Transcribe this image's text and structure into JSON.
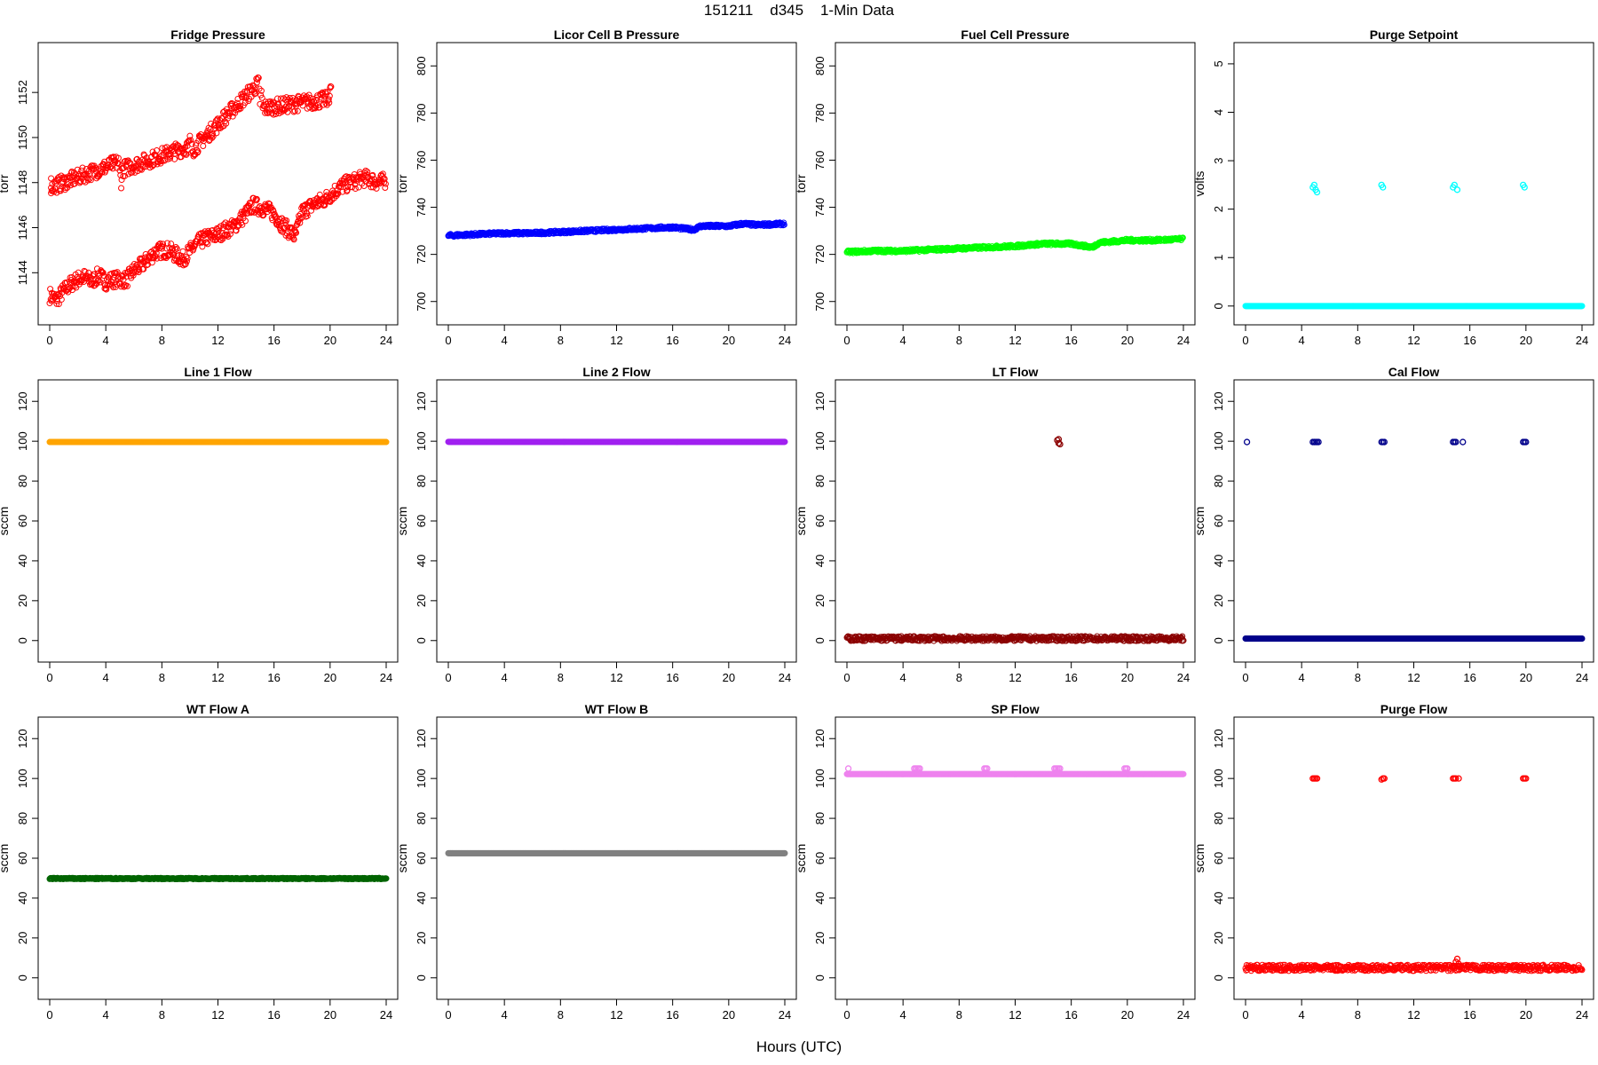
{
  "page": {
    "title": "151211    d345    1-Min Data",
    "xlabel": "Hours (UTC)"
  },
  "chart_data": [
    {
      "type": "scatter",
      "title": "Fridge Pressure",
      "ylabel": "torr",
      "color": "#ff0000",
      "xlim": [
        0,
        24
      ],
      "ylim": [
        1142.2,
        1153.7
      ],
      "xticks": [
        0,
        4,
        8,
        12,
        16,
        20,
        24
      ],
      "yticks": [
        1144,
        1146,
        1148,
        1150,
        1152
      ],
      "series": [
        {
          "x": [
            0,
            0.5,
            1,
            1.5,
            2,
            2.5,
            3,
            3.5,
            4,
            4.5,
            5.5,
            6,
            6.5,
            7,
            7.5,
            8,
            8.5,
            9,
            9.5,
            10.5,
            11,
            11.5,
            12,
            12.5,
            13,
            13.5,
            14,
            14.5,
            15.5,
            16,
            16.5,
            17,
            17.5,
            18,
            18.5,
            19,
            19.5,
            20.5,
            21,
            21.5,
            22,
            22.5,
            23,
            23.5,
            24
          ],
          "y": [
            1143.0,
            1142.8,
            1143.2,
            1143.5,
            1143.7,
            1143.8,
            1143.6,
            1143.9,
            1143.6,
            1143.7,
            1143.7,
            1144.1,
            1144.3,
            1144.6,
            1144.9,
            1145.0,
            1145.0,
            1144.8,
            1144.6,
            1145.3,
            1145.5,
            1145.6,
            1145.7,
            1145.9,
            1146.0,
            1146.3,
            1146.6,
            1147.0,
            1146.8,
            1146.6,
            1146.2,
            1145.9,
            1145.6,
            1146.7,
            1146.9,
            1147.1,
            1147.2,
            1147.7,
            1147.9,
            1148.0,
            1148.1,
            1148.2,
            1148.1,
            1148.0,
            1148.1
          ],
          "jitter": 0.35
        },
        {
          "x": [
            0.1,
            0.1,
            4.9,
            5.0,
            5.1,
            5.2,
            9.9,
            10.0,
            10.1,
            14.9,
            15.0,
            15.1,
            15.2,
            19.9,
            20.0,
            20.1
          ],
          "y": [
            1148.1,
            1147.8,
            1148.9,
            1148.4,
            1148.1,
            1148.6,
            1149.6,
            1149.9,
            1149.4,
            1152.4,
            1151.6,
            1151.9,
            1151.3,
            1151.7,
            1152.2,
            1151.9
          ],
          "jitter": 0.35
        }
      ]
    },
    {
      "type": "scatter",
      "title": "Licor Cell B Pressure",
      "ylabel": "torr",
      "color": "#0000ff",
      "xlim": [
        0,
        24
      ],
      "ylim": [
        695,
        805
      ],
      "xticks": [
        0,
        4,
        8,
        12,
        16,
        20,
        24
      ],
      "yticks": [
        700,
        720,
        740,
        760,
        780,
        800
      ],
      "series": [
        {
          "x": [
            0,
            2,
            4,
            6,
            8,
            10,
            12,
            14,
            16,
            17.5,
            18,
            20,
            21,
            22,
            24
          ],
          "y": [
            728,
            728.5,
            729,
            729,
            729.5,
            730,
            730.5,
            731,
            731.5,
            730.5,
            732,
            732,
            733,
            732.5,
            733
          ],
          "jitter": 0.6
        }
      ]
    },
    {
      "type": "scatter",
      "title": "Fuel Cell Pressure",
      "ylabel": "torr",
      "color": "#00ff00",
      "xlim": [
        0,
        24
      ],
      "ylim": [
        695,
        805
      ],
      "xticks": [
        0,
        4,
        8,
        12,
        16,
        20,
        24
      ],
      "yticks": [
        700,
        720,
        740,
        760,
        780,
        800
      ],
      "series": [
        {
          "x": [
            0,
            2,
            4,
            6,
            8,
            10,
            12,
            14,
            16,
            17.5,
            18,
            20,
            22,
            24
          ],
          "y": [
            721,
            721.5,
            721.5,
            722,
            722.5,
            723,
            723.5,
            724.5,
            724.5,
            723,
            725,
            726,
            726,
            726.5
          ],
          "jitter": 0.6
        }
      ]
    },
    {
      "type": "scatter",
      "title": "Purge Setpoint",
      "ylabel": "volts",
      "color": "#00ffff",
      "xlim": [
        0,
        24
      ],
      "ylim": [
        -0.15,
        5.2
      ],
      "xticks": [
        0,
        4,
        8,
        12,
        16,
        20,
        24
      ],
      "yticks": [
        0,
        1,
        2,
        3,
        4,
        5
      ],
      "series": [
        {
          "x": [
            0,
            24
          ],
          "y": [
            0,
            0
          ],
          "jitter": 0
        },
        {
          "x": [
            4.8,
            4.9,
            5.0,
            5.1,
            9.7,
            9.8,
            14.8,
            14.9,
            15.1,
            19.8,
            19.9
          ],
          "y": [
            2.45,
            2.5,
            2.4,
            2.35,
            2.5,
            2.45,
            2.45,
            2.5,
            2.4,
            2.5,
            2.45
          ],
          "jitter": 0
        }
      ]
    },
    {
      "type": "scatter",
      "title": "Line 1 Flow",
      "ylabel": "sccm",
      "color": "#ffa500",
      "xlim": [
        0,
        24
      ],
      "ylim": [
        -5,
        125
      ],
      "xticks": [
        0,
        4,
        8,
        12,
        16,
        20,
        24
      ],
      "yticks": [
        0,
        20,
        40,
        60,
        80,
        100,
        120
      ],
      "series": [
        {
          "x": [
            0,
            24
          ],
          "y": [
            99.6,
            99.6
          ],
          "jitter": 0
        }
      ]
    },
    {
      "type": "scatter",
      "title": "Line 2 Flow",
      "ylabel": "sccm",
      "color": "#a020f0",
      "xlim": [
        0,
        24
      ],
      "ylim": [
        -5,
        125
      ],
      "xticks": [
        0,
        4,
        8,
        12,
        16,
        20,
        24
      ],
      "yticks": [
        0,
        20,
        40,
        60,
        80,
        100,
        120
      ],
      "series": [
        {
          "x": [
            0,
            24
          ],
          "y": [
            99.7,
            99.7
          ],
          "jitter": 0
        }
      ]
    },
    {
      "type": "scatter",
      "title": "LT Flow",
      "ylabel": "sccm",
      "color": "#8b0000",
      "xlim": [
        0,
        24
      ],
      "ylim": [
        -5,
        125
      ],
      "xticks": [
        0,
        4,
        8,
        12,
        16,
        20,
        24
      ],
      "yticks": [
        0,
        20,
        40,
        60,
        80,
        100,
        120
      ],
      "series": [
        {
          "x": [
            0,
            24
          ],
          "y": [
            1,
            1
          ],
          "jitter": 1.2
        },
        {
          "x": [
            15.0,
            15.1,
            15.2,
            15.1
          ],
          "y": [
            100.5,
            99,
            98.5,
            101
          ],
          "jitter": 0
        }
      ]
    },
    {
      "type": "scatter",
      "title": "Cal Flow",
      "ylabel": "sccm",
      "color": "#00008b",
      "xlim": [
        0,
        24
      ],
      "ylim": [
        -5,
        125
      ],
      "xticks": [
        0,
        4,
        8,
        12,
        16,
        20,
        24
      ],
      "yticks": [
        0,
        20,
        40,
        60,
        80,
        100,
        120
      ],
      "series": [
        {
          "x": [
            0,
            24
          ],
          "y": [
            1,
            1
          ],
          "jitter": 0
        },
        {
          "x": [
            0.1,
            4.8,
            4.9,
            5.0,
            5.1,
            5.2,
            9.7,
            9.8,
            9.9,
            14.8,
            14.9,
            15.0,
            15.5,
            19.8,
            19.9,
            20.0
          ],
          "y": [
            99.6,
            99.6,
            99.6,
            99.6,
            99.6,
            99.6,
            99.6,
            99.6,
            99.6,
            99.6,
            99.6,
            99.6,
            99.6,
            99.6,
            99.6,
            99.6
          ],
          "jitter": 0
        }
      ]
    },
    {
      "type": "scatter",
      "title": "WT Flow A",
      "ylabel": "sccm",
      "color": "#006400",
      "xlim": [
        0,
        24
      ],
      "ylim": [
        -5,
        125
      ],
      "xticks": [
        0,
        4,
        8,
        12,
        16,
        20,
        24
      ],
      "yticks": [
        0,
        20,
        40,
        60,
        80,
        100,
        120
      ],
      "series": [
        {
          "x": [
            0,
            24
          ],
          "y": [
            49.8,
            49.8
          ],
          "jitter": 0.3
        }
      ]
    },
    {
      "type": "scatter",
      "title": "WT Flow B",
      "ylabel": "sccm",
      "color": "#808080",
      "xlim": [
        0,
        24
      ],
      "ylim": [
        -5,
        125
      ],
      "xticks": [
        0,
        4,
        8,
        12,
        16,
        20,
        24
      ],
      "yticks": [
        0,
        20,
        40,
        60,
        80,
        100,
        120
      ],
      "series": [
        {
          "x": [
            0,
            24
          ],
          "y": [
            62.5,
            62.5
          ],
          "jitter": 0
        }
      ]
    },
    {
      "type": "scatter",
      "title": "SP Flow",
      "ylabel": "sccm",
      "color": "#ee82ee",
      "xlim": [
        0,
        24
      ],
      "ylim": [
        -5,
        125
      ],
      "xticks": [
        0,
        4,
        8,
        12,
        16,
        20,
        24
      ],
      "yticks": [
        0,
        20,
        40,
        60,
        80,
        100,
        120
      ],
      "series": [
        {
          "x": [
            0,
            24
          ],
          "y": [
            102.2,
            102.2
          ],
          "jitter": 0
        },
        {
          "x": [
            0.1,
            4.8,
            4.9,
            5.0,
            5.1,
            5.2,
            9.8,
            9.9,
            10.0,
            14.8,
            14.9,
            15.0,
            15.1,
            15.2,
            19.8,
            19.9,
            20.0
          ],
          "y": [
            105,
            105,
            105,
            105,
            105,
            105,
            105,
            105,
            105,
            105,
            105,
            105,
            105,
            105,
            105,
            105,
            105
          ],
          "jitter": 0
        }
      ]
    },
    {
      "type": "scatter",
      "title": "Purge Flow",
      "ylabel": "sccm",
      "color": "#ff0000",
      "xlim": [
        0,
        24
      ],
      "ylim": [
        -5,
        125
      ],
      "xticks": [
        0,
        4,
        8,
        12,
        16,
        20,
        24
      ],
      "yticks": [
        0,
        20,
        40,
        60,
        80,
        100,
        120
      ],
      "series": [
        {
          "x": [
            0,
            24
          ],
          "y": [
            5,
            5
          ],
          "jitter": 1.5
        },
        {
          "x": [
            15.0,
            15.1,
            15.2
          ],
          "y": [
            8,
            9.5,
            7
          ],
          "jitter": 0
        },
        {
          "x": [
            4.8,
            4.9,
            5.0,
            5.1,
            9.7,
            9.8,
            9.9,
            14.8,
            14.9,
            15.0,
            15.2,
            19.8,
            19.9,
            20.0
          ],
          "y": [
            100,
            100,
            100,
            100,
            99.5,
            100,
            100,
            100,
            100,
            100,
            100,
            100,
            100,
            100
          ],
          "jitter": 0
        }
      ]
    }
  ]
}
